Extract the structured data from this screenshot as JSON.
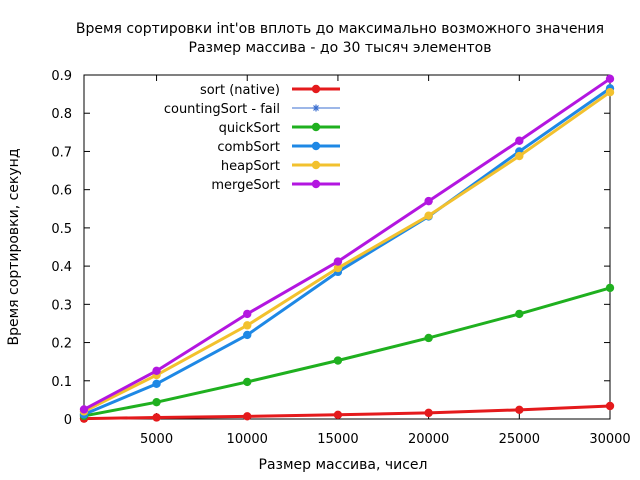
{
  "chart_data": {
    "type": "line",
    "title": "Время сортировки int'ов вплоть до максимально возможного значения",
    "subtitle": "Размер массива - до 30 тысяч элементов",
    "xlabel": "Размер массива, чисел",
    "ylabel": "Время сортировки, секунд",
    "xlim": [
      1000,
      30000
    ],
    "ylim": [
      0,
      0.9
    ],
    "xticks": [
      5000,
      10000,
      15000,
      20000,
      25000,
      30000
    ],
    "yticks": [
      0,
      0.1,
      0.2,
      0.3,
      0.4,
      0.5,
      0.6,
      0.7,
      0.8,
      0.9
    ],
    "grid": false,
    "legend_position": "top-left",
    "x": [
      1000,
      5000,
      10000,
      15000,
      20000,
      25000,
      30000
    ],
    "series": [
      {
        "name": "sort (native)",
        "color": "#e41a1c",
        "marker": "circle",
        "line_width": 3,
        "values": [
          0.001,
          0.004,
          0.007,
          0.011,
          0.016,
          0.024,
          0.034
        ]
      },
      {
        "name": "countingSort - fail",
        "color": "#3b6fd0",
        "marker": "star",
        "line_width": 1,
        "values": [
          null,
          null,
          null,
          null,
          null,
          null,
          null
        ]
      },
      {
        "name": "quickSort",
        "color": "#1fb01f",
        "marker": "circle",
        "line_width": 3,
        "values": [
          0.008,
          0.044,
          0.097,
          0.153,
          0.212,
          0.275,
          0.343
        ]
      },
      {
        "name": "combSort",
        "color": "#1e88e5",
        "marker": "circle",
        "line_width": 3,
        "values": [
          0.012,
          0.092,
          0.22,
          0.385,
          0.53,
          0.7,
          0.865
        ]
      },
      {
        "name": "heapSort",
        "color": "#f2c12e",
        "marker": "circle",
        "line_width": 3,
        "values": [
          0.02,
          0.115,
          0.245,
          0.395,
          0.532,
          0.688,
          0.855
        ]
      },
      {
        "name": "mergeSort",
        "color": "#b316e0",
        "marker": "circle",
        "line_width": 3,
        "values": [
          0.025,
          0.126,
          0.275,
          0.412,
          0.57,
          0.728,
          0.89
        ]
      }
    ]
  }
}
